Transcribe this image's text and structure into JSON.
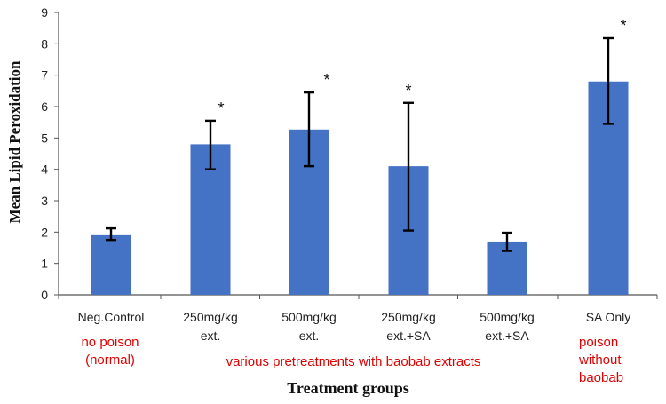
{
  "chart_data": {
    "type": "bar",
    "title": "",
    "ylabel": "Mean Lipid Peroxidation",
    "xlabel": "Treatment groups",
    "ylim": [
      0,
      9
    ],
    "yticks": [
      "0",
      "1",
      "2",
      "3",
      "4",
      "5",
      "6",
      "7",
      "8",
      "9"
    ],
    "grid": false,
    "legend": "none",
    "bar_color": "#4472c4",
    "categories": [
      [
        "Neg.Control"
      ],
      [
        "250mg/kg",
        "ext."
      ],
      [
        "500mg/kg",
        "ext."
      ],
      [
        "250mg/kg",
        "ext.+SA"
      ],
      [
        "500mg/kg",
        "ext.+SA"
      ],
      [
        "SA Only"
      ]
    ],
    "values": [
      1.9,
      4.8,
      5.27,
      4.1,
      1.7,
      6.8
    ],
    "error_low": [
      1.75,
      4.0,
      4.1,
      2.05,
      1.4,
      5.45
    ],
    "error_high": [
      2.12,
      5.55,
      6.45,
      6.12,
      1.98,
      8.18
    ],
    "significance": [
      "",
      "*",
      "*",
      "*",
      "",
      "*"
    ],
    "annotations": [
      {
        "lines": [
          "no poison",
          "(normal)"
        ],
        "color": "#e00000"
      },
      {
        "lines": [
          "various pretreatments with baobab extracts"
        ],
        "color": "#e00000"
      },
      {
        "lines": [
          "poison",
          "without",
          "baobab"
        ],
        "color": "#e00000"
      }
    ]
  }
}
